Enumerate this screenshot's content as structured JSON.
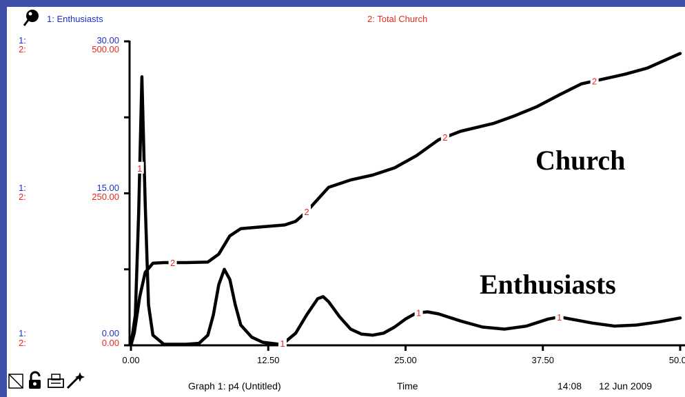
{
  "legend": [
    {
      "label": "1: Enthusiasts",
      "color": "#1f2ecc"
    },
    {
      "label": "2: Total Church",
      "color": "#e8281c"
    }
  ],
  "axis_scale_labels": {
    "s1": {
      "tag": "1:",
      "top": "30.00",
      "mid": "15.00",
      "bottom": "0.00",
      "color": "#1f2ecc"
    },
    "s2": {
      "tag": "2:",
      "top": "500.00",
      "mid": "250.00",
      "bottom": "0.00",
      "color": "#e8281c"
    }
  },
  "footer": {
    "graph_title": "Graph 1: p4 (Untitled)",
    "axis_name": "Time",
    "time": "14:08",
    "date": "12 Jun 2009"
  },
  "annotations": [
    "Church",
    "Enthusiasts"
  ],
  "chart_data": {
    "type": "line",
    "x_ticks": [
      "0.00",
      "12.50",
      "25.00",
      "37.50",
      "50.00"
    ],
    "xlim": [
      0,
      50
    ],
    "series": [
      {
        "name": "Enthusiasts",
        "id": "1",
        "ylim": [
          0,
          30
        ],
        "points": [
          [
            0,
            0
          ],
          [
            0.4,
            3
          ],
          [
            0.7,
            13
          ],
          [
            1.0,
            26.5
          ],
          [
            1.3,
            14
          ],
          [
            1.6,
            4
          ],
          [
            2.0,
            1
          ],
          [
            3,
            0.1
          ],
          [
            5,
            0.1
          ],
          [
            6.2,
            0.2
          ],
          [
            7,
            1
          ],
          [
            7.5,
            3
          ],
          [
            8,
            6
          ],
          [
            8.5,
            7.5
          ],
          [
            9,
            6.5
          ],
          [
            9.5,
            4
          ],
          [
            10,
            2
          ],
          [
            11,
            0.8
          ],
          [
            12,
            0.3
          ],
          [
            13.5,
            0.1
          ],
          [
            14,
            0.3
          ],
          [
            15,
            1.2
          ],
          [
            16,
            3
          ],
          [
            17,
            4.6
          ],
          [
            17.5,
            4.8
          ],
          [
            18,
            4.3
          ],
          [
            19,
            2.8
          ],
          [
            20,
            1.6
          ],
          [
            21,
            1.1
          ],
          [
            22,
            1.0
          ],
          [
            23,
            1.2
          ],
          [
            24,
            1.8
          ],
          [
            25,
            2.6
          ],
          [
            26,
            3.2
          ],
          [
            27,
            3.3
          ],
          [
            28,
            3.1
          ],
          [
            30,
            2.4
          ],
          [
            32,
            1.8
          ],
          [
            34,
            1.6
          ],
          [
            36,
            1.9
          ],
          [
            38,
            2.6
          ],
          [
            39,
            2.8
          ],
          [
            40,
            2.6
          ],
          [
            42,
            2.2
          ],
          [
            44,
            1.9
          ],
          [
            46,
            2.0
          ],
          [
            48,
            2.3
          ],
          [
            50,
            2.7
          ]
        ],
        "marker_x": [
          0.8,
          13.8,
          26.2,
          39.0
        ]
      },
      {
        "name": "Total Church",
        "id": "2",
        "ylim": [
          0,
          500
        ],
        "points": [
          [
            0,
            0
          ],
          [
            0.3,
            20
          ],
          [
            0.8,
            80
          ],
          [
            1.3,
            120
          ],
          [
            2,
            135
          ],
          [
            3,
            136
          ],
          [
            5,
            136
          ],
          [
            7,
            137
          ],
          [
            8,
            150
          ],
          [
            9,
            180
          ],
          [
            10,
            192
          ],
          [
            12,
            195
          ],
          [
            14,
            198
          ],
          [
            15,
            204
          ],
          [
            16,
            220
          ],
          [
            17,
            240
          ],
          [
            18,
            260
          ],
          [
            20,
            272
          ],
          [
            22,
            280
          ],
          [
            24,
            292
          ],
          [
            26,
            312
          ],
          [
            28,
            338
          ],
          [
            30,
            352
          ],
          [
            33,
            365
          ],
          [
            35,
            378
          ],
          [
            37,
            393
          ],
          [
            39,
            412
          ],
          [
            41,
            430
          ],
          [
            43,
            438
          ],
          [
            45,
            446
          ],
          [
            47,
            456
          ],
          [
            50,
            480
          ]
        ],
        "marker_x": [
          3.8,
          16.0,
          28.6,
          42.2
        ]
      }
    ]
  }
}
